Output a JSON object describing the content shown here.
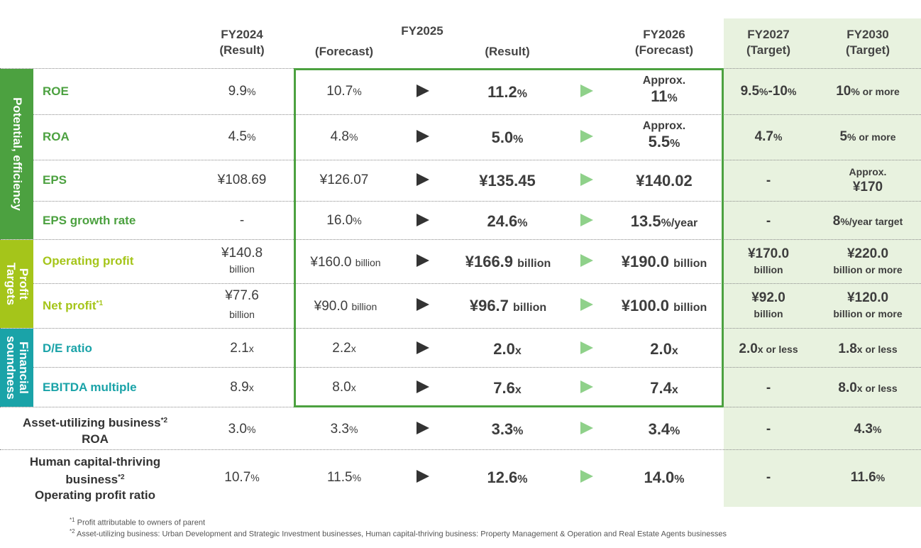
{
  "colors": {
    "potential": "#4ca140",
    "profit": "#a5c51a",
    "financial": "#1aa3a8",
    "target_bg": "#e8f2df",
    "frame": "#4ca140",
    "arrow_dark": "#333333",
    "arrow_green": "#8fd18a"
  },
  "headers": {
    "fy2024_year": "FY2024",
    "fy2024_sub": "(Result)",
    "fy2025_year": "FY2025",
    "fy2025_forecast": "(Forecast)",
    "fy2025_result": "(Result)",
    "fy2026_year": "FY2026",
    "fy2026_sub": "(Forecast)",
    "fy2027_year": "FY2027",
    "fy2027_sub": "(Target)",
    "fy2030_year": "FY2030",
    "fy2030_sub": "(Target)"
  },
  "bands": {
    "potential": "Potential, efficiency",
    "profit_1": "Profit",
    "profit_2": "Targets",
    "financial_1": "Financial",
    "financial_2": "soundness"
  },
  "rows": {
    "roe": {
      "label": "ROE",
      "fy24": "9.9",
      "fy24_u": "%",
      "f25": "10.7",
      "f25_u": "%",
      "r25": "11.2",
      "r25_u": "%",
      "f26_a": "Approx.",
      "f26": "11",
      "f26_u": "%",
      "t27": "9.5",
      "t27_u1": "%",
      "t27_mid": "-10",
      "t27_u2": "%",
      "t30": "10",
      "t30_u": "% or more"
    },
    "roa": {
      "label": "ROA",
      "fy24": "4.5",
      "fy24_u": "%",
      "f25": "4.8",
      "f25_u": "%",
      "r25": "5.0",
      "r25_u": "%",
      "f26_a": "Approx.",
      "f26": "5.5",
      "f26_u": "%",
      "t27": "4.7",
      "t27_u": "%",
      "t30": "5",
      "t30_u": "% or more"
    },
    "eps": {
      "label": "EPS",
      "fy24": "¥108.69",
      "f25": "¥126.07",
      "r25": "¥135.45",
      "f26": "¥140.02",
      "t27": "-",
      "t30_a": "Approx.",
      "t30": "¥170"
    },
    "eps_growth": {
      "label": "EPS growth rate",
      "fy24": "-",
      "f25": "16.0",
      "f25_u": "%",
      "r25": "24.6",
      "r25_u": "%",
      "f26": "13.5",
      "f26_u": "%/year",
      "t27": "-",
      "t30": "8",
      "t30_u": "%/year target"
    },
    "op_profit": {
      "label": "Operating profit",
      "fy24": "¥140.8",
      "fy24_u": "billion",
      "f25": "¥160.0",
      "f25_u": "billion",
      "r25": "¥166.9",
      "r25_u": "billion",
      "f26": "¥190.0",
      "f26_u": "billion",
      "t27": "¥170.0",
      "t27_u": "billion",
      "t30": "¥220.0",
      "t30_u": "billion or more"
    },
    "net_profit": {
      "label": "Net profit",
      "label_sup": "*1",
      "fy24": "¥77.6",
      "fy24_u": "billion",
      "f25": "¥90.0",
      "f25_u": "billion",
      "r25": "¥96.7",
      "r25_u": "billion",
      "f26": "¥100.0",
      "f26_u": "billion",
      "t27": "¥92.0",
      "t27_u": "billion",
      "t30": "¥120.0",
      "t30_u": "billion or more"
    },
    "de_ratio": {
      "label": "D/E ratio",
      "fy24": "2.1",
      "fy24_u": "x",
      "f25": "2.2",
      "f25_u": "x",
      "r25": "2.0",
      "r25_u": "x",
      "f26": "2.0",
      "f26_u": "x",
      "t27": "2.0",
      "t27_u": "x or less",
      "t30": "1.8",
      "t30_u": "x or less"
    },
    "ebitda": {
      "label": "EBITDA multiple",
      "fy24": "8.9",
      "fy24_u": "x",
      "f25": "8.0",
      "f25_u": "x",
      "r25": "7.6",
      "r25_u": "x",
      "f26": "7.4",
      "f26_u": "x",
      "t27": "-",
      "t30": "8.0",
      "t30_u": "x or less"
    },
    "asset_roa": {
      "label_1": "Asset-utilizing business",
      "label_sup": "*2",
      "label_2": "ROA",
      "fy24": "3.0",
      "fy24_u": "%",
      "f25": "3.3",
      "f25_u": "%",
      "r25": "3.3",
      "r25_u": "%",
      "f26": "3.4",
      "f26_u": "%",
      "t27": "-",
      "t30": "4.3",
      "t30_u": "%"
    },
    "human_op": {
      "label_1": "Human capital-thriving",
      "label_2": "business",
      "label_sup": "*2",
      "label_3": "Operating profit ratio",
      "fy24": "10.7",
      "fy24_u": "%",
      "f25": "11.5",
      "f25_u": "%",
      "r25": "12.6",
      "r25_u": "%",
      "f26": "14.0",
      "f26_u": "%",
      "t27": "-",
      "t30": "11.6",
      "t30_u": "%"
    }
  },
  "footnotes": {
    "n1_mark": "*1",
    "n1": " Profit attributable to owners of parent",
    "n2_mark": "*2",
    "n2": " Asset-utilizing business: Urban Development and Strategic Investment businesses, Human capital-thriving business: Property Management & Operation and Real Estate Agents businesses"
  }
}
